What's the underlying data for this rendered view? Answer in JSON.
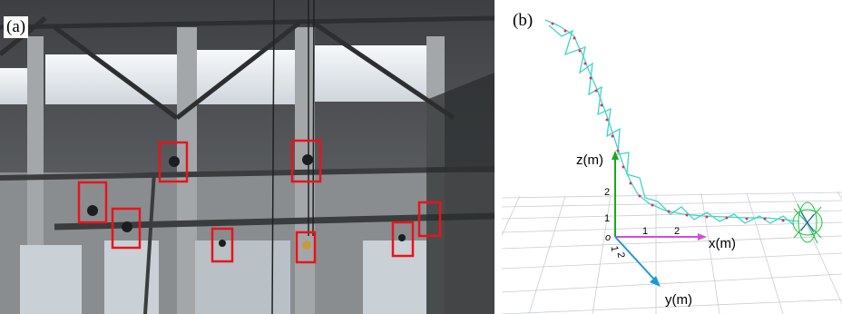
{
  "panel_a": {
    "label": "(a)",
    "detection_boxes": [
      {
        "id": 1
      },
      {
        "id": 2
      },
      {
        "id": 3
      },
      {
        "id": 4
      },
      {
        "id": 5
      },
      {
        "id": 6
      },
      {
        "id": 7
      },
      {
        "id": 8
      },
      {
        "id": 9
      }
    ],
    "box_color": "#e8141a"
  },
  "panel_b": {
    "label": "(b)",
    "axes": {
      "z_label": "z(m)",
      "x_label": "x(m)",
      "y_label": "y(m)",
      "origin_label": "o",
      "z_ticks": [
        "1",
        "2"
      ],
      "x_ticks": [
        "1",
        "2"
      ],
      "y_ticks": [
        "1",
        "2"
      ]
    },
    "colors": {
      "z_axis": "#1aa81a",
      "x_axis": "#d24fd2",
      "y_axis": "#1a9ad6",
      "trajectory": "#3fd6c8",
      "markers": "#e0306a"
    }
  }
}
